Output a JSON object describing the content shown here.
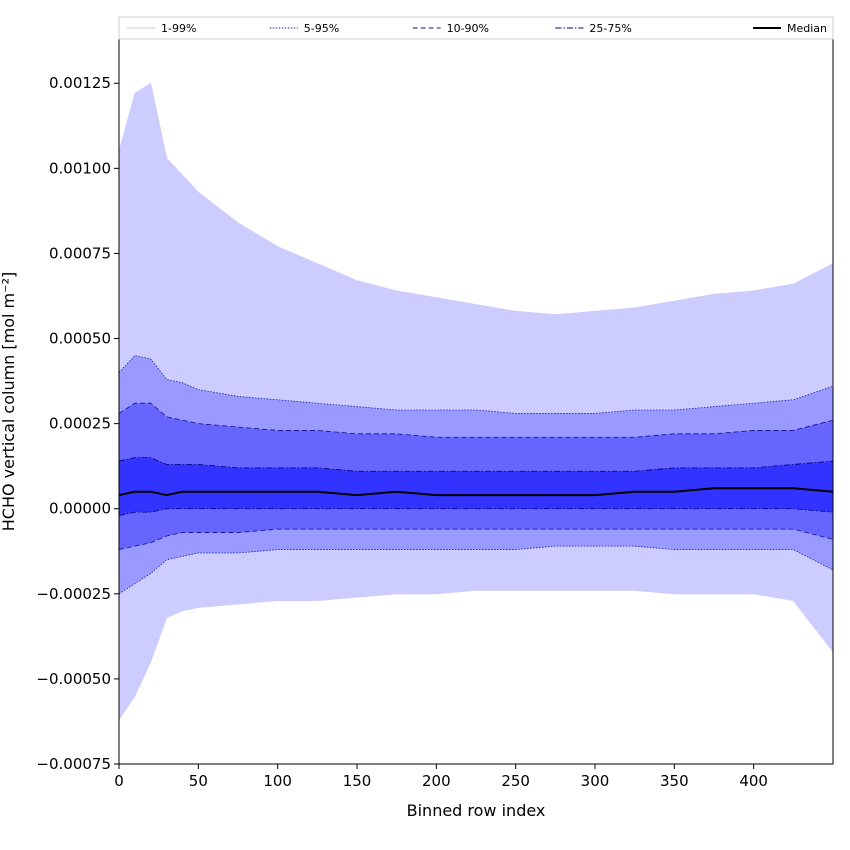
{
  "chart_data": {
    "type": "area",
    "title": "",
    "xlabel": "Binned row index",
    "ylabel": "HCHO vertical column [mol m⁻²]",
    "xlim": [
      0,
      450
    ],
    "ylim": [
      -0.00075,
      0.00138
    ],
    "grid": false,
    "legend_position": "top",
    "x_ticks": [
      0,
      50,
      100,
      150,
      200,
      250,
      300,
      350,
      400
    ],
    "x_tick_labels": [
      "0",
      "50",
      "100",
      "150",
      "200",
      "250",
      "300",
      "350",
      "400"
    ],
    "y_ticks": [
      -0.00075,
      -0.0005,
      -0.00025,
      0.0,
      0.00025,
      0.0005,
      0.00075,
      0.001,
      0.00125
    ],
    "y_tick_labels": [
      "−0.00075",
      "−0.00050",
      "−0.00025",
      "0.00000",
      "0.00025",
      "0.00050",
      "0.00075",
      "0.00100",
      "0.00125"
    ],
    "x": [
      0,
      10,
      20,
      30,
      40,
      50,
      75,
      100,
      125,
      150,
      175,
      200,
      225,
      250,
      275,
      300,
      325,
      350,
      375,
      400,
      425,
      450
    ],
    "series": [
      {
        "name": "1-99%",
        "lower": [
          -0.00062,
          -0.00055,
          -0.00045,
          -0.00032,
          -0.0003,
          -0.00029,
          -0.00028,
          -0.00027,
          -0.00027,
          -0.00026,
          -0.00025,
          -0.00025,
          -0.00024,
          -0.00024,
          -0.00024,
          -0.00024,
          -0.00024,
          -0.00025,
          -0.00025,
          -0.00025,
          -0.00027,
          -0.00042
        ],
        "upper": [
          0.00105,
          0.00122,
          0.00125,
          0.00103,
          0.00098,
          0.00093,
          0.00084,
          0.00077,
          0.00072,
          0.00067,
          0.00064,
          0.00062,
          0.0006,
          0.00058,
          0.00057,
          0.00058,
          0.00059,
          0.00061,
          0.00063,
          0.00064,
          0.00066,
          0.00072
        ],
        "color": "#ccccff",
        "line_color": "#ccccff",
        "line_style": "solid"
      },
      {
        "name": "5-95%",
        "lower": [
          -0.00025,
          -0.00022,
          -0.00019,
          -0.00015,
          -0.00014,
          -0.00013,
          -0.00013,
          -0.00012,
          -0.00012,
          -0.00012,
          -0.00012,
          -0.00012,
          -0.00012,
          -0.00012,
          -0.00011,
          -0.00011,
          -0.00011,
          -0.00012,
          -0.00012,
          -0.00012,
          -0.00012,
          -0.00018
        ],
        "upper": [
          0.0004,
          0.00045,
          0.00044,
          0.00038,
          0.00037,
          0.00035,
          0.00033,
          0.00032,
          0.00031,
          0.0003,
          0.00029,
          0.00029,
          0.00029,
          0.00028,
          0.00028,
          0.00028,
          0.00029,
          0.00029,
          0.0003,
          0.00031,
          0.00032,
          0.00036
        ],
        "color": "#9999ff",
        "line_color": "#2020a0",
        "line_style": "dotted"
      },
      {
        "name": "10-90%",
        "lower": [
          -0.00012,
          -0.00011,
          -0.0001,
          -8e-05,
          -7e-05,
          -7e-05,
          -7e-05,
          -6e-05,
          -6e-05,
          -6e-05,
          -6e-05,
          -6e-05,
          -6e-05,
          -6e-05,
          -6e-05,
          -6e-05,
          -6e-05,
          -6e-05,
          -6e-05,
          -6e-05,
          -6e-05,
          -9e-05
        ],
        "upper": [
          0.00028,
          0.00031,
          0.00031,
          0.00027,
          0.00026,
          0.00025,
          0.00024,
          0.00023,
          0.00023,
          0.00022,
          0.00022,
          0.00021,
          0.00021,
          0.00021,
          0.00021,
          0.00021,
          0.00021,
          0.00022,
          0.00022,
          0.00023,
          0.00023,
          0.00026
        ],
        "color": "#6666ff",
        "line_color": "#10108a",
        "line_style": "dashed"
      },
      {
        "name": "25-75%",
        "lower": [
          -2e-05,
          -1e-05,
          -1e-05,
          0.0,
          0.0,
          0.0,
          0.0,
          0.0,
          0.0,
          0.0,
          0.0,
          0.0,
          0.0,
          0.0,
          0.0,
          0.0,
          0.0,
          0.0,
          0.0,
          0.0,
          0.0,
          -1e-05
        ],
        "upper": [
          0.00014,
          0.00015,
          0.00015,
          0.00013,
          0.00013,
          0.00013,
          0.00012,
          0.00012,
          0.00012,
          0.00011,
          0.00011,
          0.00011,
          0.00011,
          0.00011,
          0.00011,
          0.00011,
          0.00011,
          0.00012,
          0.00012,
          0.00012,
          0.00013,
          0.00014
        ],
        "color": "#3333ff",
        "line_color": "#000070",
        "line_style": "dashdot"
      },
      {
        "name": "Median",
        "values": [
          4e-05,
          5e-05,
          5e-05,
          4e-05,
          5e-05,
          5e-05,
          5e-05,
          5e-05,
          5e-05,
          4e-05,
          5e-05,
          4e-05,
          4e-05,
          4e-05,
          4e-05,
          4e-05,
          5e-05,
          5e-05,
          6e-05,
          6e-05,
          6e-05,
          5e-05
        ],
        "color": "#000000",
        "line_style": "solid"
      }
    ]
  }
}
